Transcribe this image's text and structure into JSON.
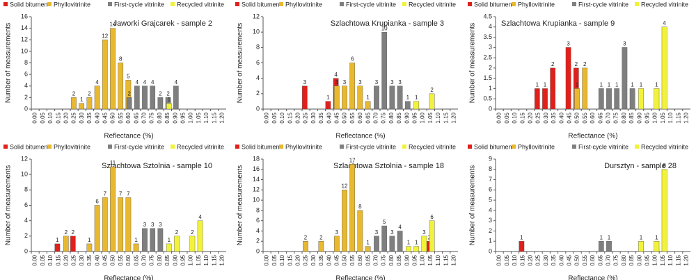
{
  "chart_data": [
    {
      "type": "bar",
      "title": "Jaworki Grajcarek - sample 2",
      "xlabel": "Reflectance (%)",
      "ylabel": "Number of measurements",
      "categories": [
        "0.00",
        "0.05",
        "0.10",
        "0.15",
        "0.20",
        "0.25",
        "0.30",
        "0.35",
        "0.40",
        "0.45",
        "0.50",
        "0.55",
        "0.60",
        "0.65",
        "0.70",
        "0.75",
        "0.80",
        "0.85",
        "0.90",
        "0.95",
        "1.00",
        "1.05",
        "1.10",
        "1.15",
        "1.20"
      ],
      "series": [
        {
          "name": "Solid bitumen",
          "color": "#e0201b",
          "values": [
            null,
            null,
            null,
            null,
            null,
            null,
            null,
            null,
            null,
            null,
            null,
            null,
            null,
            null,
            null,
            null,
            null,
            null,
            null,
            null,
            null,
            null,
            null,
            null,
            null
          ]
        },
        {
          "name": "Phyllovitrinite",
          "color": "#e8b830",
          "values": [
            null,
            null,
            null,
            null,
            null,
            2,
            1,
            2,
            4,
            12,
            14,
            8,
            5,
            null,
            null,
            null,
            null,
            null,
            null,
            null,
            null,
            null,
            null,
            null,
            null
          ]
        },
        {
          "name": "First-cycle vitrinite",
          "color": "#7f7f7f",
          "values": [
            null,
            null,
            null,
            null,
            null,
            null,
            null,
            null,
            null,
            null,
            null,
            null,
            2,
            4,
            4,
            4,
            2,
            2,
            4,
            null,
            null,
            null,
            null,
            null,
            null
          ]
        },
        {
          "name": "Recycled vitrinite",
          "color": "#f2f23c",
          "values": [
            null,
            null,
            null,
            null,
            null,
            null,
            null,
            null,
            null,
            null,
            null,
            null,
            null,
            null,
            null,
            null,
            null,
            1,
            null,
            null,
            null,
            null,
            null,
            null,
            null
          ]
        }
      ],
      "ylim": [
        0,
        16
      ],
      "yticks": [
        0,
        2,
        4,
        6,
        8,
        10,
        12,
        14,
        16
      ]
    },
    {
      "type": "bar",
      "title": "Szlachtowa Krupianka - sample 3",
      "xlabel": "Reflectance (%)",
      "ylabel": "Number of measurements",
      "categories": [
        "0.00",
        "0.05",
        "0.10",
        "0.15",
        "0.20",
        "0.25",
        "0.30",
        "0.35",
        "0.40",
        "0.45",
        "0.50",
        "0.55",
        "0.60",
        "0.65",
        "0.70",
        "0.75",
        "0.80",
        "0.85",
        "0.90",
        "0.95",
        "1.00",
        "1.05",
        "1.10",
        "1.15",
        "1.20"
      ],
      "series": [
        {
          "name": "Solid bitumen",
          "color": "#e0201b",
          "values": [
            null,
            null,
            null,
            null,
            null,
            3,
            null,
            null,
            1,
            4,
            null,
            null,
            null,
            null,
            null,
            null,
            null,
            null,
            null,
            null,
            null,
            null,
            null,
            null,
            null
          ]
        },
        {
          "name": "Phyllovitrinite",
          "color": "#e8b830",
          "values": [
            null,
            null,
            null,
            null,
            null,
            null,
            null,
            null,
            null,
            3,
            3,
            6,
            3,
            1,
            null,
            null,
            null,
            null,
            null,
            null,
            null,
            null,
            null,
            null,
            null
          ]
        },
        {
          "name": "First-cycle vitrinite",
          "color": "#7f7f7f",
          "values": [
            null,
            null,
            null,
            null,
            null,
            null,
            null,
            null,
            null,
            null,
            null,
            null,
            null,
            null,
            3,
            10,
            3,
            3,
            1,
            null,
            null,
            null,
            null,
            null,
            null
          ]
        },
        {
          "name": "Recycled vitrinite",
          "color": "#f2f23c",
          "values": [
            null,
            null,
            null,
            null,
            null,
            null,
            null,
            null,
            null,
            null,
            null,
            null,
            null,
            null,
            null,
            null,
            null,
            null,
            null,
            1,
            null,
            2,
            null,
            null,
            null
          ]
        }
      ],
      "ylim": [
        0,
        12
      ],
      "yticks": [
        0,
        2,
        4,
        6,
        8,
        10,
        12
      ]
    },
    {
      "type": "bar",
      "title": "Szlachtowa Krupianka - sample 9",
      "xlabel": "Reflectance (%)",
      "ylabel": "Number of measurements",
      "categories": [
        "0.00",
        "0.05",
        "0.10",
        "0.15",
        "0.20",
        "0.25",
        "0.30",
        "0.35",
        "0.40",
        "0.45",
        "0.50",
        "0.55",
        "0.60",
        "0.65",
        "0.70",
        "0.75",
        "0.80",
        "0.85",
        "0.90",
        "0.95",
        "1.00",
        "1.05",
        "1.10",
        "1.15",
        "1.20"
      ],
      "series": [
        {
          "name": "Solid bitumen",
          "color": "#e0201b",
          "values": [
            null,
            null,
            null,
            null,
            null,
            1,
            1,
            2,
            null,
            3,
            2,
            null,
            null,
            null,
            null,
            null,
            null,
            null,
            null,
            null,
            null,
            null,
            null,
            null,
            null
          ]
        },
        {
          "name": "Phyllovitrinite",
          "color": "#e8b830",
          "values": [
            null,
            null,
            null,
            null,
            null,
            null,
            null,
            null,
            null,
            null,
            1,
            2,
            null,
            null,
            null,
            null,
            null,
            null,
            null,
            null,
            null,
            null,
            null,
            null,
            null
          ]
        },
        {
          "name": "First-cycle vitrinite",
          "color": "#7f7f7f",
          "values": [
            null,
            null,
            null,
            null,
            null,
            null,
            null,
            null,
            null,
            null,
            null,
            null,
            null,
            1,
            1,
            1,
            3,
            1,
            null,
            null,
            null,
            null,
            null,
            null,
            null
          ]
        },
        {
          "name": "Recycled vitrinite",
          "color": "#f2f23c",
          "values": [
            null,
            null,
            null,
            null,
            null,
            null,
            null,
            null,
            null,
            null,
            null,
            null,
            null,
            null,
            null,
            null,
            null,
            null,
            1,
            null,
            1,
            4,
            null,
            null,
            null
          ]
        }
      ],
      "ylim": [
        0,
        4.5
      ],
      "yticks": [
        0,
        0.5,
        1,
        1.5,
        2,
        2.5,
        3,
        3.5,
        4,
        4.5
      ]
    },
    {
      "type": "bar",
      "title": "Szlachtowa Sztolnia  - sample 10",
      "xlabel": "Reflectance (%)",
      "ylabel": "Number of measurements",
      "categories": [
        "0.00",
        "0.05",
        "0.10",
        "0.15",
        "0.20",
        "0.25",
        "0.30",
        "0.35",
        "0.40",
        "0.45",
        "0.50",
        "0.55",
        "0.60",
        "0.65",
        "0.70",
        "0.75",
        "0.80",
        "0.85",
        "0.90",
        "0.95",
        "1.00",
        "1.05",
        "1.10",
        "1.15",
        "1.20"
      ],
      "series": [
        {
          "name": "Solid bitumen",
          "color": "#e0201b",
          "values": [
            null,
            null,
            null,
            1,
            null,
            2,
            null,
            null,
            null,
            null,
            null,
            null,
            null,
            null,
            null,
            null,
            null,
            null,
            null,
            null,
            null,
            null,
            null,
            null,
            null
          ]
        },
        {
          "name": "Phyllovitrinite",
          "color": "#e8b830",
          "values": [
            null,
            null,
            null,
            null,
            2,
            null,
            null,
            1,
            6,
            7,
            11,
            7,
            7,
            1,
            null,
            null,
            null,
            null,
            null,
            null,
            null,
            null,
            null,
            null,
            null
          ]
        },
        {
          "name": "First-cycle vitrinite",
          "color": "#7f7f7f",
          "values": [
            null,
            null,
            null,
            null,
            null,
            null,
            null,
            null,
            null,
            null,
            null,
            null,
            null,
            null,
            3,
            3,
            3,
            null,
            null,
            null,
            null,
            null,
            null,
            null,
            null
          ]
        },
        {
          "name": "Recycled vitrinite",
          "color": "#f2f23c",
          "values": [
            null,
            null,
            null,
            null,
            null,
            null,
            null,
            null,
            null,
            null,
            null,
            null,
            null,
            null,
            null,
            null,
            null,
            1,
            2,
            null,
            2,
            4,
            null,
            null,
            null
          ]
        }
      ],
      "ylim": [
        0,
        12
      ],
      "yticks": [
        0,
        2,
        4,
        6,
        8,
        10,
        12
      ]
    },
    {
      "type": "bar",
      "title": "Szlachtowa Sztolnia - sample 18",
      "xlabel": "Reflectance (%)",
      "ylabel": "Number of measurements",
      "categories": [
        "0.00",
        "0.05",
        "0.10",
        "0.15",
        "0.20",
        "0.25",
        "0.30",
        "0.35",
        "0.40",
        "0.45",
        "0.50",
        "0.55",
        "0.60",
        "0.65",
        "0.70",
        "0.75",
        "0.80",
        "0.85",
        "0.90",
        "0.95",
        "1.00",
        "1.05",
        "1.10",
        "1.15",
        "1.20"
      ],
      "series": [
        {
          "name": "Solid bitumen",
          "color": "#e0201b",
          "values": [
            null,
            null,
            null,
            null,
            null,
            null,
            null,
            null,
            null,
            null,
            null,
            null,
            null,
            null,
            null,
            null,
            null,
            null,
            null,
            null,
            null,
            2,
            null,
            null,
            null
          ]
        },
        {
          "name": "Phyllovitrinite",
          "color": "#e8b830",
          "values": [
            null,
            null,
            null,
            null,
            null,
            2,
            null,
            2,
            null,
            3,
            12,
            17,
            8,
            1,
            null,
            null,
            null,
            null,
            null,
            null,
            null,
            null,
            null,
            null,
            null
          ]
        },
        {
          "name": "First-cycle vitrinite",
          "color": "#7f7f7f",
          "values": [
            null,
            null,
            null,
            null,
            null,
            null,
            null,
            null,
            null,
            null,
            null,
            null,
            null,
            null,
            3,
            5,
            3,
            4,
            null,
            null,
            null,
            null,
            null,
            null,
            null
          ]
        },
        {
          "name": "Recycled vitrinite",
          "color": "#f2f23c",
          "values": [
            null,
            null,
            null,
            null,
            null,
            null,
            null,
            null,
            null,
            null,
            null,
            null,
            null,
            null,
            null,
            null,
            null,
            null,
            1,
            1,
            3,
            6,
            null,
            null,
            null
          ]
        }
      ],
      "ylim": [
        0,
        18
      ],
      "yticks": [
        0,
        2,
        4,
        6,
        8,
        10,
        12,
        14,
        16,
        18
      ]
    },
    {
      "type": "bar",
      "title": "Dursztyn - sample 28",
      "xlabel": "Reflectance (%)",
      "ylabel": "Number of measurements",
      "categories": [
        "0.00",
        "0.05",
        "0.10",
        "0.15",
        "0.20",
        "0.25",
        "0.30",
        "0.35",
        "0.40",
        "0.45",
        "0.50",
        "0.55",
        "0.60",
        "0.65",
        "0.70",
        "0.75",
        "0.80",
        "0.85",
        "0.90",
        "0.95",
        "1.00",
        "1.05",
        "1.10",
        "1.15",
        "1.20"
      ],
      "series": [
        {
          "name": "Solid bitumen",
          "color": "#e0201b",
          "values": [
            null,
            null,
            null,
            1,
            null,
            null,
            null,
            null,
            null,
            null,
            null,
            null,
            null,
            null,
            null,
            null,
            null,
            null,
            null,
            null,
            null,
            null,
            null,
            null,
            null
          ]
        },
        {
          "name": "Phyllovitrinite",
          "color": "#e8b830",
          "values": [
            null,
            null,
            null,
            null,
            null,
            null,
            null,
            null,
            null,
            null,
            null,
            null,
            null,
            null,
            null,
            null,
            null,
            null,
            null,
            null,
            null,
            null,
            null,
            null,
            null
          ]
        },
        {
          "name": "First-cycle vitrinite",
          "color": "#7f7f7f",
          "values": [
            null,
            null,
            null,
            null,
            null,
            null,
            null,
            null,
            null,
            null,
            null,
            null,
            null,
            1,
            1,
            null,
            null,
            null,
            null,
            null,
            null,
            null,
            null,
            null,
            null
          ]
        },
        {
          "name": "Recycled vitrinite",
          "color": "#f2f23c",
          "values": [
            null,
            null,
            null,
            null,
            null,
            null,
            null,
            null,
            null,
            null,
            null,
            null,
            null,
            null,
            null,
            null,
            null,
            null,
            1,
            null,
            1,
            8,
            null,
            null,
            null
          ]
        }
      ],
      "ylim": [
        0,
        9
      ],
      "yticks": [
        0,
        1,
        2,
        3,
        4,
        5,
        6,
        7,
        8,
        9
      ]
    }
  ]
}
